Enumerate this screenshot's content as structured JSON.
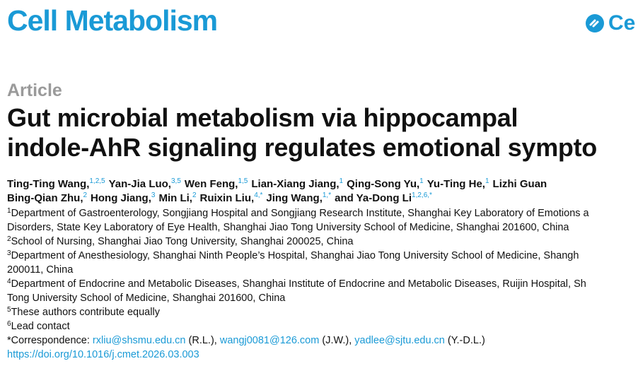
{
  "header": {
    "journal": "Cell Metabolism",
    "logo_text": "Ce"
  },
  "article": {
    "type": "Article",
    "title_lines": [
      "Gut microbial metabolism via hippocampal",
      "indole-AhR signaling regulates emotional sympto"
    ],
    "author_lines": [
      [
        {
          "name": "Ting-Ting Wang,",
          "sup": "1,2,5"
        },
        {
          "name": "Yan-Jia Luo,",
          "sup": "3,5"
        },
        {
          "name": "Wen Feng,",
          "sup": "1,5"
        },
        {
          "name": "Lian-Xiang Jiang,",
          "sup": "1"
        },
        {
          "name": "Qing-Song Yu,",
          "sup": "1"
        },
        {
          "name": "Yu-Ting He,",
          "sup": "1"
        },
        {
          "name": "Lizhi Guan"
        }
      ],
      [
        {
          "name": "Bing-Qian Zhu,",
          "sup": "2"
        },
        {
          "name": "Hong Jiang,",
          "sup": "3"
        },
        {
          "name": "Min Li,",
          "sup": "2"
        },
        {
          "name": "Ruixin Liu,",
          "sup": "4,*"
        },
        {
          "name": "Jing Wang,",
          "sup": "1,*"
        },
        {
          "name": "and Ya-Dong Li",
          "sup": "1,2,6,*"
        }
      ]
    ],
    "affiliation_lines": [
      {
        "sup": "1",
        "text": "Department of Gastroenterology, Songjiang Hospital and Songjiang Research Institute, Shanghai Key Laboratory of Emotions a"
      },
      {
        "text": "Disorders, State Key Laboratory of Eye Health, Shanghai Jiao Tong University School of Medicine, Shanghai 201600, China"
      },
      {
        "sup": "2",
        "text": "School of Nursing, Shanghai Jiao Tong University, Shanghai 200025, China"
      },
      {
        "sup": "3",
        "text": "Department of Anesthesiology, Shanghai Ninth People’s Hospital, Shanghai Jiao Tong University School of Medicine, Shangh"
      },
      {
        "text": "200011, China"
      },
      {
        "sup": "4",
        "text": "Department of Endocrine and Metabolic Diseases, Shanghai Institute of Endocrine and Metabolic Diseases, Ruijin Hospital, Sh"
      },
      {
        "text": "Tong University School of Medicine, Shanghai 201600, China"
      },
      {
        "sup": "5",
        "text": "These authors contribute equally"
      },
      {
        "sup": "6",
        "text": "Lead contact"
      }
    ],
    "correspondence": {
      "label": "*Correspondence:",
      "entries": [
        {
          "email": "rxliu@shsmu.edu.cn",
          "initials": "(R.L.),"
        },
        {
          "email": "wangj0081@126.com",
          "initials": "(J.W.),"
        },
        {
          "email": "yadlee@sjtu.edu.cn",
          "initials": "(Y.-D.L.)"
        }
      ]
    },
    "doi": "https://doi.org/10.1016/j.cmet.2026.03.003"
  }
}
